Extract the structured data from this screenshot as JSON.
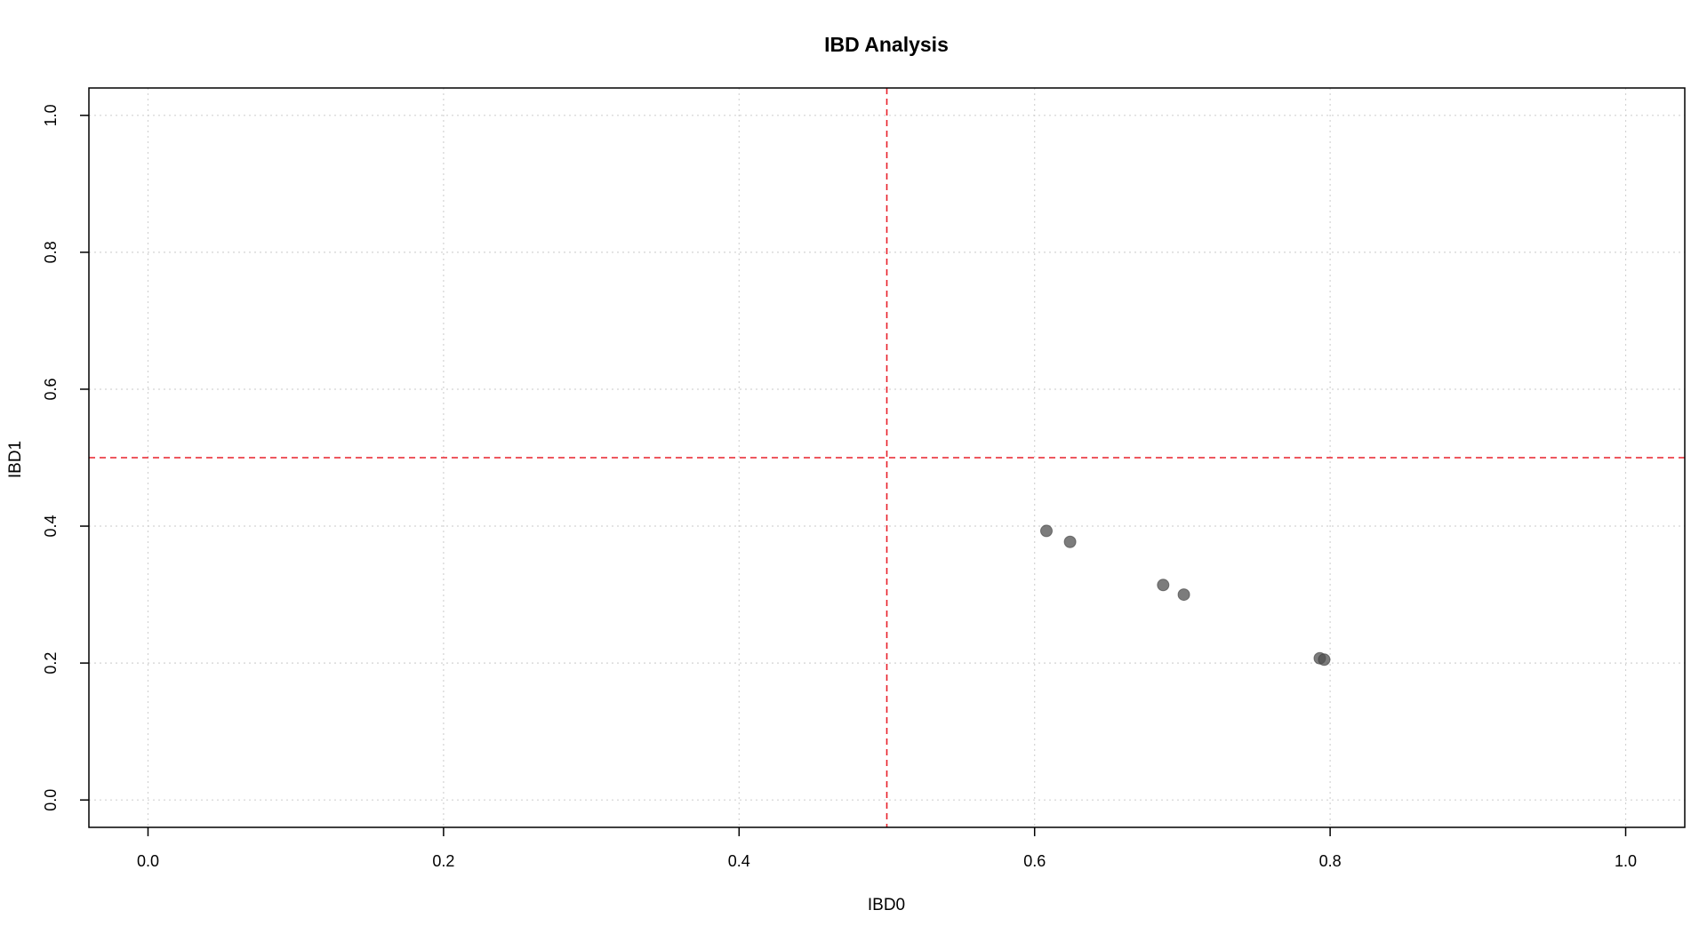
{
  "chart_data": {
    "type": "scatter",
    "title": "IBD Analysis",
    "xlabel": "IBD0",
    "ylabel": "IBD1",
    "xlim": [
      -0.04,
      1.04
    ],
    "ylim": [
      -0.04,
      1.04
    ],
    "xticks": [
      0.0,
      0.2,
      0.4,
      0.6,
      0.8,
      1.0
    ],
    "yticks": [
      0.0,
      0.2,
      0.4,
      0.6,
      0.8,
      1.0
    ],
    "xtick_labels": [
      "0.0",
      "0.2",
      "0.4",
      "0.6",
      "0.8",
      "1.0"
    ],
    "ytick_labels": [
      "0.0",
      "0.2",
      "0.4",
      "0.6",
      "0.8",
      "1.0"
    ],
    "grid": true,
    "reference_lines": {
      "vertical_x": 0.5,
      "horizontal_y": 0.5,
      "color": "#e8202a"
    },
    "point_color": "#505050",
    "series": [
      {
        "x": [
          0.608,
          0.624,
          0.687,
          0.701,
          0.793,
          0.796
        ],
        "y": [
          0.393,
          0.377,
          0.314,
          0.3,
          0.207,
          0.205
        ]
      }
    ]
  }
}
